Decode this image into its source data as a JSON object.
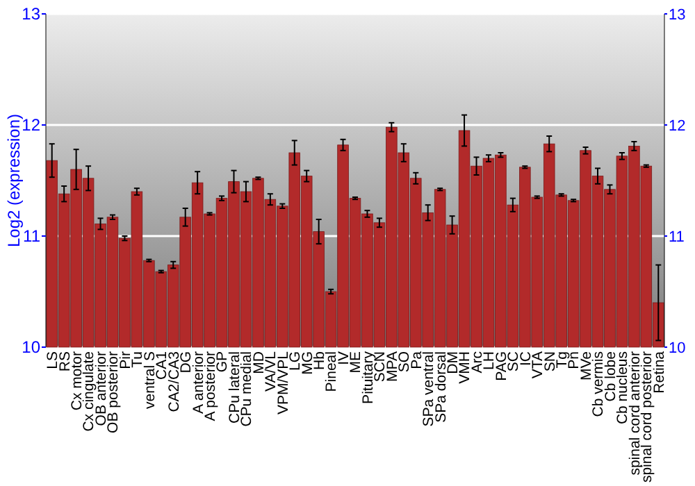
{
  "chart_data": {
    "type": "bar",
    "ylabel": "Log2 (expression)",
    "categories": [
      "LS",
      "RS",
      "Cx motor",
      "Cx cingulate",
      "OB anterior",
      "OB posterior",
      "Pir",
      "Tu",
      "ventral S",
      "CA1",
      "CA2/CA3",
      "DG",
      "A anterior",
      "A posterior",
      "GP",
      "CPu lateral",
      "CPu medial",
      "MD",
      "VA/VL",
      "VPM/VPL",
      "LG",
      "MG",
      "Hb",
      "Pineal",
      "IV",
      "ME",
      "Pituitary",
      "SCN",
      "MPA",
      "SO",
      "Pa",
      "SPa ventral",
      "SPa dorsal",
      "DM",
      "VMH",
      "Arc",
      "LH",
      "PAG",
      "SC",
      "IC",
      "VTA",
      "SN",
      "Tg",
      "Pn",
      "MVe",
      "Cb vermis",
      "Cb lobe",
      "Cb nucleus",
      "spinal cord anterior",
      "spinal cord posterior",
      "Retina"
    ],
    "values": [
      11.68,
      11.38,
      11.6,
      11.52,
      11.11,
      11.17,
      10.98,
      11.4,
      10.78,
      10.68,
      10.74,
      11.17,
      11.48,
      11.2,
      11.34,
      11.49,
      11.4,
      11.52,
      11.33,
      11.27,
      11.75,
      11.54,
      11.04,
      10.5,
      11.82,
      11.34,
      11.2,
      11.12,
      11.98,
      11.75,
      11.52,
      11.21,
      11.42,
      11.1,
      11.95,
      11.63,
      11.7,
      11.73,
      11.28,
      11.62,
      11.35,
      11.83,
      11.37,
      11.32,
      11.77,
      11.54,
      11.42,
      11.72,
      11.81,
      11.63,
      10.4
    ],
    "errors": [
      0.15,
      0.07,
      0.18,
      0.11,
      0.05,
      0.02,
      0.02,
      0.03,
      0.01,
      0.01,
      0.03,
      0.08,
      0.1,
      0.01,
      0.02,
      0.1,
      0.09,
      0.01,
      0.05,
      0.02,
      0.11,
      0.05,
      0.11,
      0.02,
      0.05,
      0.01,
      0.03,
      0.04,
      0.04,
      0.08,
      0.05,
      0.07,
      0.01,
      0.08,
      0.14,
      0.08,
      0.03,
      0.02,
      0.06,
      0.01,
      0.01,
      0.07,
      0.01,
      0.01,
      0.03,
      0.07,
      0.04,
      0.03,
      0.04,
      0.01,
      0.34
    ],
    "color": "#b22a2a",
    "ylim": [
      10,
      13
    ],
    "yticks": [
      10,
      11,
      12,
      13
    ],
    "y2lim": [
      10,
      13
    ],
    "y2ticks": [
      10,
      11,
      12,
      13
    ],
    "grid": "y"
  }
}
